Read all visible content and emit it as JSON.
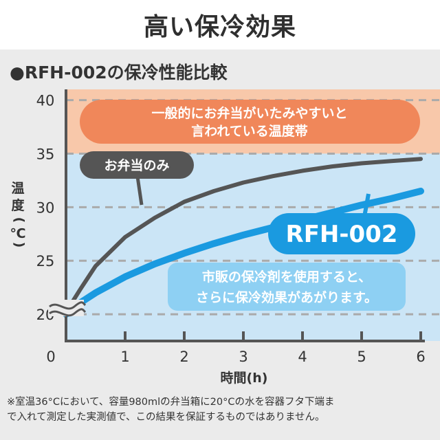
{
  "page": {
    "title": "高い保冷効果",
    "subtitle": "●RFH-002の保冷性能比較",
    "footnote_line1": "※室温36°Cにおいて、容量980mlの弁当箱に20°Cの水を容器フタ下端ま",
    "footnote_line2": "で入れて測定した実測値で、この結果を保証するものではありません。"
  },
  "chart_data": {
    "type": "line",
    "xlabel": "時間(h)",
    "ylabel_chars": [
      "温",
      "度",
      "(",
      "℃",
      ")"
    ],
    "x_ticks": [
      0,
      1,
      2,
      3,
      4,
      5,
      6
    ],
    "y_ticks": [
      20,
      25,
      30,
      35,
      40
    ],
    "xlim": [
      0,
      6
    ],
    "ylim": [
      17.5,
      41
    ],
    "axis_break": true,
    "grid": "dashed horizontal",
    "colors": {
      "warning_band": "#f8c8aa",
      "safe_band": "#cbe5f6",
      "bento_series": "#555555",
      "rfh_series": "#1a9ae0",
      "warning_label_bg": "#f0875a"
    },
    "bands": [
      {
        "from": 35,
        "to": 41,
        "label_line1": "一般的にお弁当がいたみやすいと",
        "label_line2": "言われている温度帯"
      }
    ],
    "series": [
      {
        "name": "お弁当のみ",
        "x": [
          0,
          0.25,
          0.5,
          1,
          1.5,
          2,
          2.5,
          3,
          3.5,
          4,
          4.5,
          5,
          5.5,
          6
        ],
        "y": [
          20.2,
          22.4,
          24.5,
          27.2,
          29.0,
          30.5,
          31.5,
          32.3,
          32.9,
          33.4,
          33.8,
          34.1,
          34.3,
          34.5
        ]
      },
      {
        "name": "RFH-002",
        "x": [
          0,
          0.25,
          0.5,
          1,
          1.5,
          2,
          2.5,
          3,
          3.5,
          4,
          4.5,
          5,
          5.5,
          6
        ],
        "y": [
          20.0,
          21.1,
          22.0,
          23.5,
          24.7,
          25.7,
          26.6,
          27.4,
          28.1,
          28.8,
          29.5,
          30.2,
          30.8,
          31.5
        ]
      }
    ],
    "annotations": {
      "rfh_note_line1": "市販の保冷剤を使用すると、",
      "rfh_note_line2": "さらに保冷効果があがります。"
    }
  }
}
